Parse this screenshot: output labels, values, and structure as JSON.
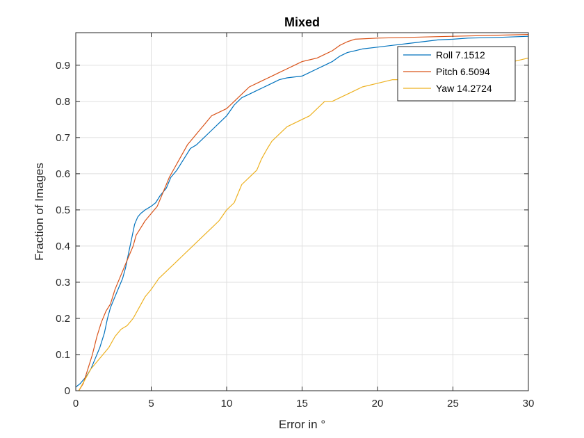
{
  "chart_data": {
    "type": "line",
    "title": "Mixed",
    "xlabel": "Error in °",
    "ylabel": "Fraction of Images",
    "xlim": [
      0,
      30
    ],
    "ylim": [
      0,
      0.99
    ],
    "xticks": [
      0,
      5,
      10,
      15,
      20,
      25,
      30
    ],
    "yticks": [
      0,
      0.1,
      0.2,
      0.3,
      0.4,
      0.5,
      0.6,
      0.7,
      0.8,
      0.9
    ],
    "xtick_labels": [
      "0",
      "5",
      "10",
      "15",
      "20",
      "25",
      "30"
    ],
    "ytick_labels": [
      "0",
      "0.1",
      "0.2",
      "0.3",
      "0.4",
      "0.5",
      "0.6",
      "0.7",
      "0.8",
      "0.9"
    ],
    "grid": true,
    "legend_position": "top-right",
    "series": [
      {
        "name": "Roll 7.1512",
        "color": "#0072BD",
        "x": [
          0,
          0.3,
          0.7,
          1.0,
          1.3,
          1.6,
          1.9,
          2.1,
          2.3,
          2.6,
          2.9,
          3.1,
          3.3,
          3.5,
          3.7,
          3.9,
          4.1,
          4.3,
          4.6,
          5.0,
          5.3,
          5.6,
          6.0,
          6.3,
          6.7,
          7.0,
          7.3,
          7.6,
          8.0,
          8.5,
          9.0,
          9.5,
          10.0,
          10.5,
          11.0,
          11.5,
          12.0,
          12.5,
          13.0,
          13.5,
          14.0,
          15.0,
          15.5,
          16.0,
          16.5,
          17.0,
          17.5,
          18.0,
          19.0,
          20.0,
          21.0,
          22.0,
          23.0,
          24.0,
          25.0,
          26.0,
          28.0,
          30.0
        ],
        "y": [
          0.01,
          0.02,
          0.04,
          0.06,
          0.09,
          0.12,
          0.16,
          0.2,
          0.23,
          0.26,
          0.29,
          0.31,
          0.34,
          0.38,
          0.42,
          0.46,
          0.48,
          0.49,
          0.5,
          0.51,
          0.52,
          0.54,
          0.56,
          0.59,
          0.61,
          0.63,
          0.65,
          0.67,
          0.68,
          0.7,
          0.72,
          0.74,
          0.76,
          0.79,
          0.81,
          0.82,
          0.83,
          0.84,
          0.85,
          0.86,
          0.865,
          0.87,
          0.88,
          0.89,
          0.9,
          0.91,
          0.925,
          0.935,
          0.945,
          0.95,
          0.955,
          0.96,
          0.965,
          0.97,
          0.972,
          0.975,
          0.977,
          0.98
        ]
      },
      {
        "name": "Pitch 6.5094",
        "color": "#D95319",
        "x": [
          0.2,
          0.5,
          0.8,
          1.1,
          1.4,
          1.7,
          2.0,
          2.3,
          2.6,
          2.9,
          3.2,
          3.5,
          3.8,
          4.0,
          4.3,
          4.6,
          5.0,
          5.4,
          5.8,
          6.2,
          6.6,
          7.0,
          7.4,
          7.8,
          8.2,
          8.6,
          9.0,
          9.5,
          10.0,
          10.5,
          11.0,
          11.5,
          12.0,
          12.5,
          13.0,
          13.5,
          14.0,
          14.5,
          15.0,
          15.5,
          16.0,
          16.5,
          17.0,
          17.5,
          18.0,
          18.5,
          20.0,
          22.0,
          24.0,
          26.0,
          28.0,
          30.0
        ],
        "y": [
          0.0,
          0.02,
          0.06,
          0.1,
          0.15,
          0.19,
          0.22,
          0.24,
          0.28,
          0.31,
          0.34,
          0.37,
          0.4,
          0.43,
          0.45,
          0.47,
          0.49,
          0.51,
          0.55,
          0.59,
          0.62,
          0.65,
          0.68,
          0.7,
          0.72,
          0.74,
          0.76,
          0.77,
          0.78,
          0.8,
          0.82,
          0.84,
          0.85,
          0.86,
          0.87,
          0.88,
          0.89,
          0.9,
          0.91,
          0.915,
          0.92,
          0.93,
          0.94,
          0.955,
          0.965,
          0.972,
          0.975,
          0.977,
          0.979,
          0.981,
          0.983,
          0.985
        ]
      },
      {
        "name": "Yaw 14.2724",
        "color": "#EDB120",
        "x": [
          0.2,
          0.6,
          1.0,
          1.4,
          1.8,
          2.2,
          2.6,
          3.0,
          3.4,
          3.8,
          4.2,
          4.6,
          5.0,
          5.5,
          6.0,
          6.5,
          7.0,
          7.5,
          8.0,
          8.5,
          9.0,
          9.5,
          10.0,
          10.5,
          11.0,
          11.5,
          12.0,
          12.3,
          12.7,
          13.0,
          13.5,
          14.0,
          14.5,
          15.0,
          15.5,
          16.0,
          16.5,
          17.0,
          17.5,
          18.0,
          18.5,
          19.0,
          20.0,
          21.0,
          22.0,
          23.0,
          24.0,
          25.0,
          26.0,
          27.0,
          28.0,
          29.0,
          30.0
        ],
        "y": [
          0.0,
          0.03,
          0.06,
          0.08,
          0.1,
          0.12,
          0.15,
          0.17,
          0.18,
          0.2,
          0.23,
          0.26,
          0.28,
          0.31,
          0.33,
          0.35,
          0.37,
          0.39,
          0.41,
          0.43,
          0.45,
          0.47,
          0.5,
          0.52,
          0.57,
          0.59,
          0.61,
          0.64,
          0.67,
          0.69,
          0.71,
          0.73,
          0.74,
          0.75,
          0.76,
          0.78,
          0.8,
          0.8,
          0.81,
          0.82,
          0.83,
          0.84,
          0.85,
          0.86,
          0.86,
          0.865,
          0.87,
          0.875,
          0.88,
          0.89,
          0.9,
          0.91,
          0.92
        ]
      }
    ]
  }
}
